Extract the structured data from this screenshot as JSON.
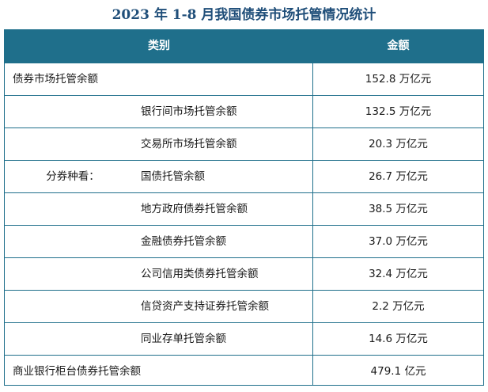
{
  "title": "2023 年 1-8 月我国债券市场托管情况统计",
  "header": {
    "category": "类别",
    "amount": "金额"
  },
  "rows": [
    {
      "label": "债券市场托管余额",
      "value": "152.8 万亿元"
    },
    {
      "label": "银行间市场托管余额",
      "value": "132.5 万亿元"
    },
    {
      "label": "交易所市场托管余额",
      "value": "20.3 万亿元"
    },
    {
      "label": "国债托管余额",
      "value": "26.7 万亿元"
    },
    {
      "label": "地方政府债券托管余额",
      "value": "38.5 万亿元"
    },
    {
      "label": "金融债券托管余额",
      "value": "37.0 万亿元"
    },
    {
      "label": "公司信用类债券托管余额",
      "value": "32.4 万亿元"
    },
    {
      "label": "信贷资产支持证券托管余额",
      "value": "2.2 万亿元"
    },
    {
      "label": "同业存单托管余额",
      "value": "14.6 万亿元"
    },
    {
      "label": "商业银行柜台债券托管余额",
      "value": "479.1 亿元"
    }
  ],
  "group_label": "分券种看："
}
